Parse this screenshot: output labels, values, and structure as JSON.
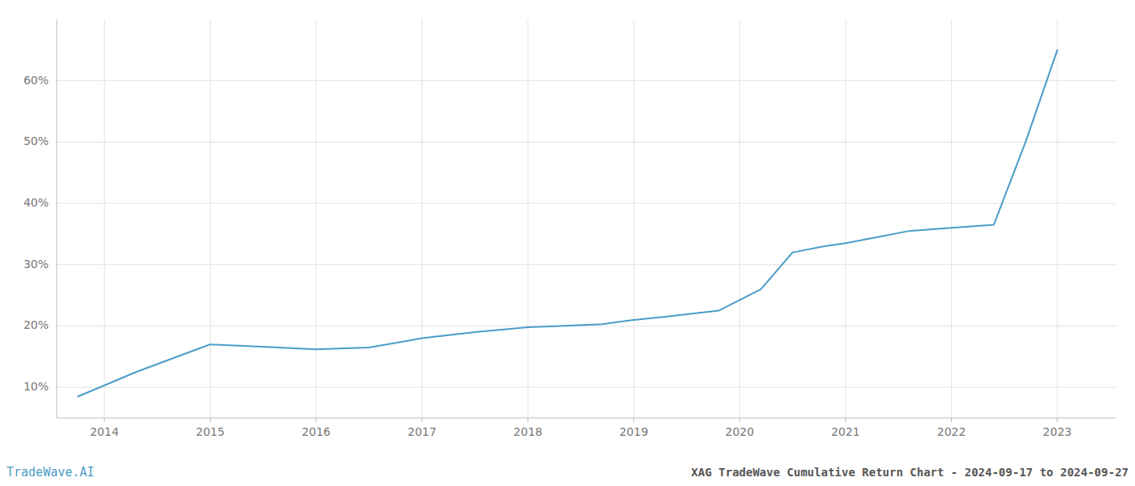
{
  "chart_data": {
    "type": "line",
    "title": "XAG TradeWave Cumulative Return Chart - 2024-09-17 to 2024-09-27",
    "annotations": [
      "TradeWave.AI"
    ],
    "x": [
      2013.75,
      2014.3,
      2015.0,
      2015.4,
      2016.0,
      2016.5,
      2017.0,
      2017.5,
      2018.0,
      2018.3,
      2018.7,
      2019.0,
      2019.3,
      2019.8,
      2020.2,
      2020.5,
      2020.8,
      2021.0,
      2021.3,
      2021.6,
      2022.0,
      2022.4,
      2022.7,
      2023.0
    ],
    "values": [
      8.5,
      12.5,
      17.0,
      16.7,
      16.2,
      16.5,
      18.0,
      19.0,
      19.8,
      20.0,
      20.3,
      21.0,
      21.5,
      22.5,
      26.0,
      32.0,
      33.0,
      33.5,
      34.5,
      35.5,
      36.0,
      36.5,
      50.0,
      65.0
    ],
    "color": "#4a9cc7",
    "xlim": [
      2013.55,
      2023.55
    ],
    "ylim": [
      5,
      70
    ],
    "xticks": [
      2014,
      2015,
      2016,
      2017,
      2018,
      2019,
      2020,
      2021,
      2022,
      2023
    ],
    "yticks": [
      {
        "value": 10,
        "label": "10%"
      },
      {
        "value": 20,
        "label": "20%"
      },
      {
        "value": 30,
        "label": "30%"
      },
      {
        "value": 40,
        "label": "40%"
      },
      {
        "value": 50,
        "label": "50%"
      },
      {
        "value": 60,
        "label": "60%"
      }
    ],
    "grid": true
  }
}
